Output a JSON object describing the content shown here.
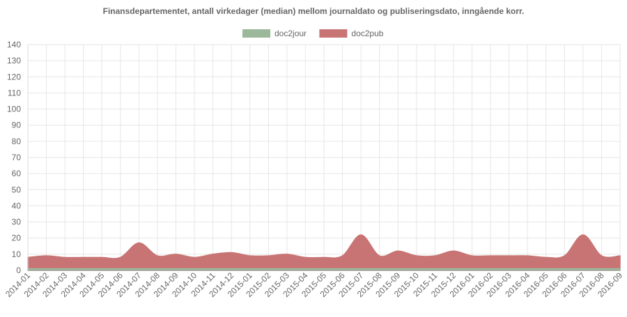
{
  "chart_data": {
    "type": "area",
    "title": "Finansdepartementet, antall virkedager (median) mellom journaldato og publiseringsdato, inngående korr.",
    "xlabel": "",
    "ylabel": "",
    "ylim": [
      0,
      140
    ],
    "yticks": [
      0,
      10,
      20,
      30,
      40,
      50,
      60,
      70,
      80,
      90,
      100,
      110,
      120,
      130,
      140
    ],
    "grid": true,
    "legend_position": "top",
    "categories": [
      "2014-01",
      "2014-02",
      "2014-03",
      "2014-04",
      "2014-05",
      "2014-06",
      "2014-07",
      "2014-08",
      "2014-09",
      "2014-10",
      "2014-11",
      "2014-12",
      "2015-01",
      "2015-02",
      "2015-03",
      "2015-04",
      "2015-05",
      "2015-06",
      "2015-07",
      "2015-08",
      "2015-09",
      "2015-10",
      "2015-11",
      "2015-12",
      "2016-01",
      "2016-02",
      "2016-03",
      "2016-04",
      "2016-05",
      "2016-06",
      "2016-07",
      "2016-08",
      "2016-09"
    ],
    "series": [
      {
        "name": "doc2jour",
        "color": "#9cb89a",
        "values": [
          1,
          1,
          1,
          1,
          1,
          1,
          1,
          1,
          1,
          1,
          1,
          1,
          1,
          1,
          1,
          1,
          1,
          1,
          1,
          1,
          1,
          1,
          1,
          1,
          1,
          1,
          1,
          1,
          1,
          1,
          1,
          1,
          1
        ]
      },
      {
        "name": "doc2pub",
        "color": "#c97474",
        "values": [
          8,
          9,
          8,
          8,
          8,
          8,
          17,
          9,
          10,
          8,
          10,
          11,
          9,
          9,
          10,
          8,
          8,
          9,
          22,
          9,
          12,
          9,
          9,
          12,
          9,
          9,
          9,
          9,
          8,
          9,
          22,
          9,
          9
        ]
      }
    ]
  }
}
